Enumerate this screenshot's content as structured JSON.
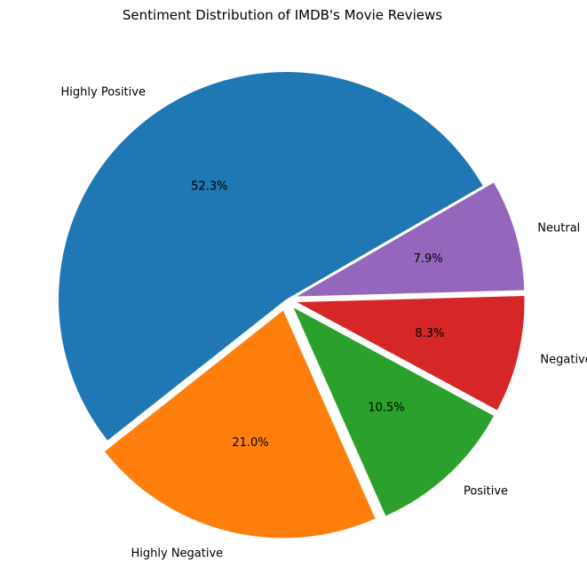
{
  "chart_data": {
    "type": "pie",
    "title": "Sentiment Distribution of IMDB's Movie Reviews",
    "slices": [
      {
        "label": "Highly Positive",
        "value": 52.3,
        "pct_label": "52.3%",
        "color": "#1f77b4",
        "explode": false
      },
      {
        "label": "Highly Negative",
        "value": 21.0,
        "pct_label": "21.0%",
        "color": "#ff7f0e",
        "explode": true
      },
      {
        "label": "Positive",
        "value": 10.5,
        "pct_label": "10.5%",
        "color": "#2ca02c",
        "explode": true
      },
      {
        "label": "Negative",
        "value": 8.3,
        "pct_label": "8.3%",
        "color": "#d62728",
        "explode": true
      },
      {
        "label": "Neutral",
        "value": 7.9,
        "pct_label": "7.9%",
        "color": "#9467bd",
        "explode": true
      }
    ],
    "start_angle_deg": 30,
    "direction": "counterclockwise",
    "legend": "none"
  }
}
